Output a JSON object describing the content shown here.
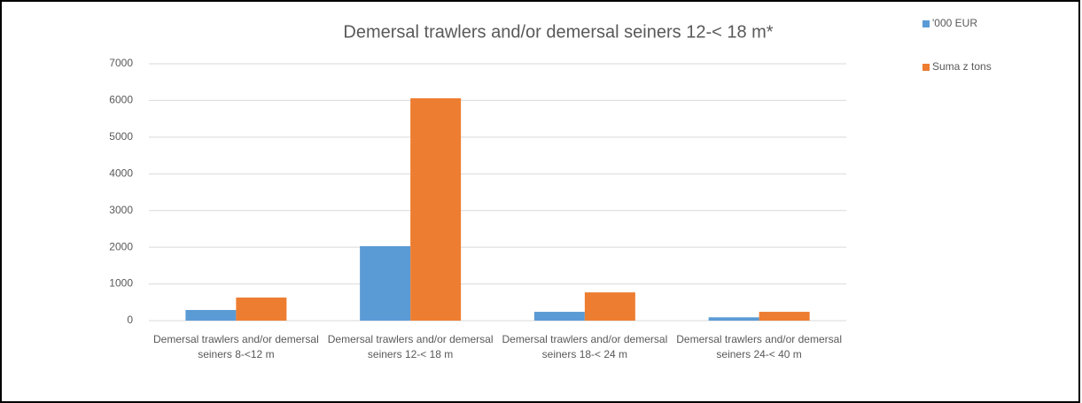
{
  "chart_data": {
    "type": "bar",
    "title": "Demersal trawlers and/or demersal seiners 12-< 18 m*",
    "categories": [
      "Demersal trawlers and/or demersal seiners 8-<12 m",
      "Demersal trawlers and/or demersal seiners 12-< 18 m",
      "Demersal trawlers and/or demersal seiners 18-< 24 m",
      "Demersal trawlers and/or demersal seiners 24-< 40 m"
    ],
    "series": [
      {
        "name": "'000 EUR",
        "color": "#5b9bd5",
        "values": [
          290,
          2030,
          240,
          90
        ]
      },
      {
        "name": "Suma z tons",
        "color": "#ed7d31",
        "values": [
          630,
          6060,
          770,
          240
        ]
      }
    ],
    "ylim": [
      0,
      7000
    ],
    "yticks": [
      0,
      1000,
      2000,
      3000,
      4000,
      5000,
      6000,
      7000
    ],
    "grid": true,
    "legend": "right"
  }
}
